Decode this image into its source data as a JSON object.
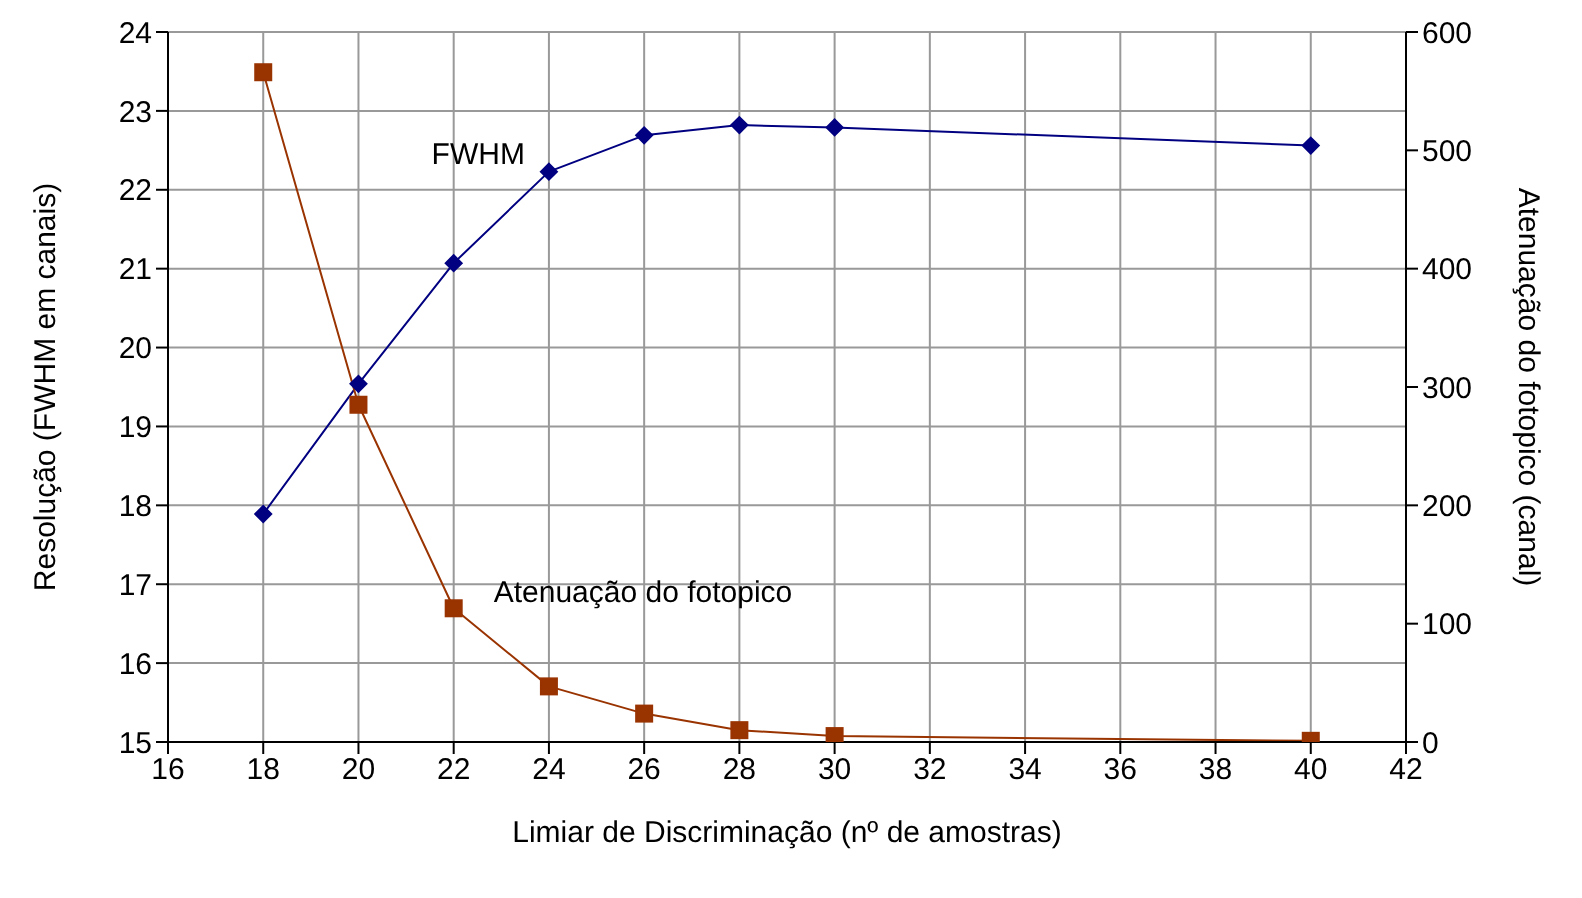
{
  "chart_data": {
    "type": "line",
    "xlabel": "Limiar de Discriminação (nº de amostras)",
    "ylabel": "Resolução (FWHM em canais)",
    "y2label": "Atenuação do fotopico (canal)",
    "x": [
      18,
      20,
      22,
      24,
      26,
      28,
      30,
      40
    ],
    "series": [
      {
        "name": "FWHM",
        "color": "#000080",
        "marker": "diamond",
        "values": [
          17.89,
          19.54,
          21.07,
          22.23,
          22.69,
          22.82,
          22.79,
          22.56
        ]
      },
      {
        "name": "Atenuação do fotopico",
        "color": "#993300",
        "marker": "square",
        "axis": "y2",
        "values": [
          566,
          285,
          113,
          47,
          24,
          10,
          5,
          1
        ]
      }
    ],
    "xlim": [
      16,
      42
    ],
    "xticks": [
      16,
      18,
      20,
      22,
      24,
      26,
      28,
      30,
      32,
      34,
      36,
      38,
      40,
      42
    ],
    "ylim": [
      15,
      24
    ],
    "yticks": [
      15,
      16,
      17,
      18,
      19,
      20,
      21,
      22,
      23,
      24
    ],
    "y2lim": [
      0,
      600
    ],
    "y2ticks": [
      0,
      100,
      200,
      300,
      400,
      500,
      600
    ],
    "grid": true,
    "legend": false
  }
}
